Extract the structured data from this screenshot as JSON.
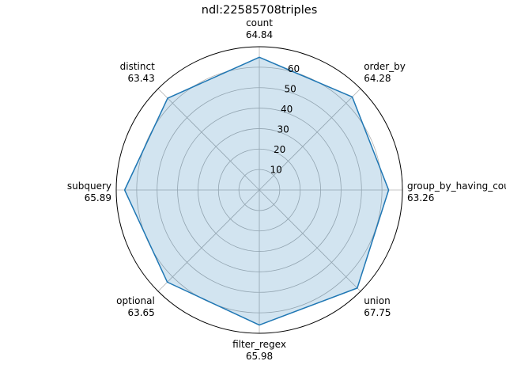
{
  "chart_data": {
    "type": "radar",
    "title": "ndl:22585708triples",
    "categories": [
      "count",
      "order_by",
      "group_by_having_count_distinct",
      "union",
      "filter_regex",
      "optional",
      "subquery",
      "distinct"
    ],
    "series": [
      {
        "values": [
          64.84,
          64.28,
          63.26,
          67.75,
          65.98,
          63.65,
          65.89,
          63.43
        ],
        "value_labels": [
          "64.84",
          "64.28",
          "63.26",
          "67.75",
          "65.98",
          "63.65",
          "65.89",
          "63.43"
        ]
      }
    ],
    "rmax": 70,
    "radial_ticks": [
      10,
      20,
      30,
      40,
      50,
      60
    ],
    "radial_tick_labels": [
      "10",
      "20",
      "30",
      "40",
      "50",
      "60"
    ],
    "grid": true,
    "colors": {
      "line": "#1f77b4",
      "fill": "#1f77b4",
      "grid": "#b0b0b0",
      "outer": "#000000"
    }
  }
}
